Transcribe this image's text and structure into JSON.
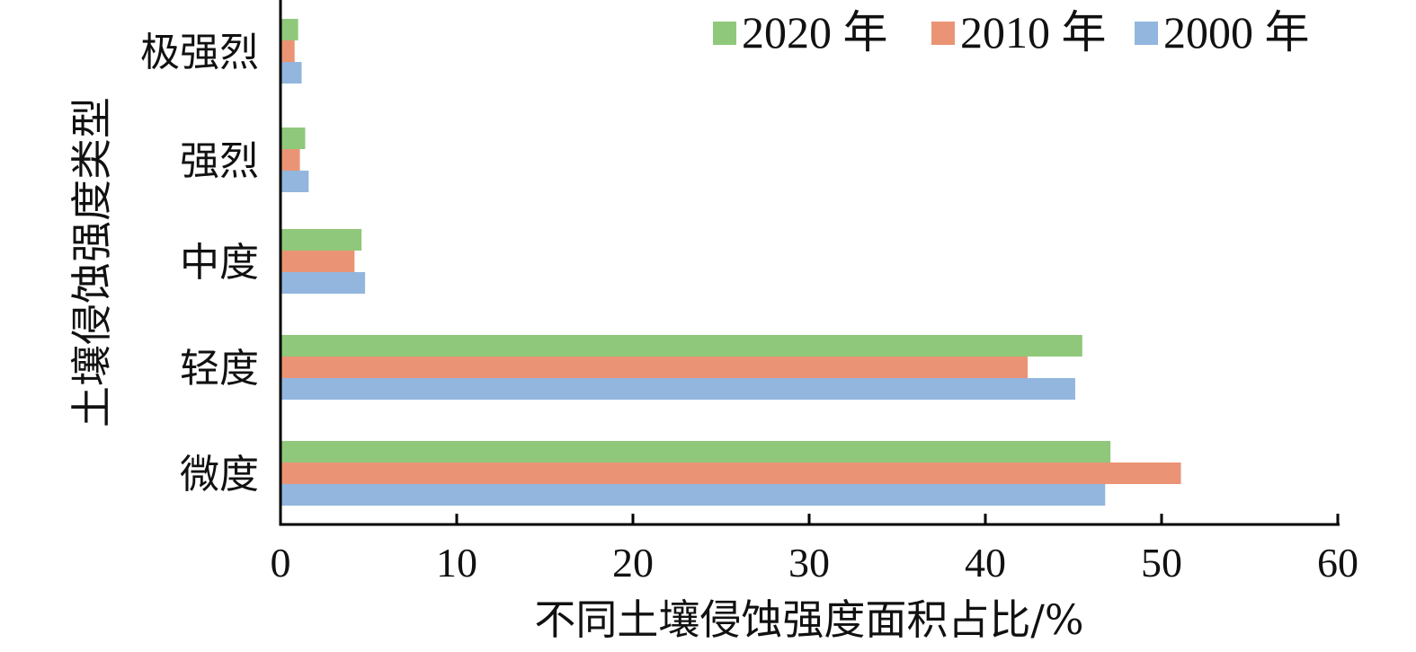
{
  "chart_data": {
    "type": "bar",
    "orientation": "horizontal",
    "categories": [
      "微度",
      "轻度",
      "中度",
      "强烈",
      "极强烈"
    ],
    "series": [
      {
        "name": "2020 年",
        "color": "#8fc87a",
        "values": [
          47.1,
          45.5,
          4.6,
          1.4,
          1.0
        ]
      },
      {
        "name": "2010 年",
        "color": "#ea9475",
        "values": [
          51.1,
          42.4,
          4.2,
          1.1,
          0.8
        ]
      },
      {
        "name": "2000 年",
        "color": "#92b6de",
        "values": [
          46.8,
          45.1,
          4.8,
          1.6,
          1.2
        ]
      }
    ],
    "xlabel": "不同土壤侵蚀强度面积占比/%",
    "ylabel": "土壤侵蚀强度类型",
    "xlim": [
      0,
      60
    ],
    "xticks": [
      "0",
      "10",
      "20",
      "30",
      "40",
      "50",
      "60"
    ],
    "grid": false,
    "legend_position": "top-right"
  }
}
